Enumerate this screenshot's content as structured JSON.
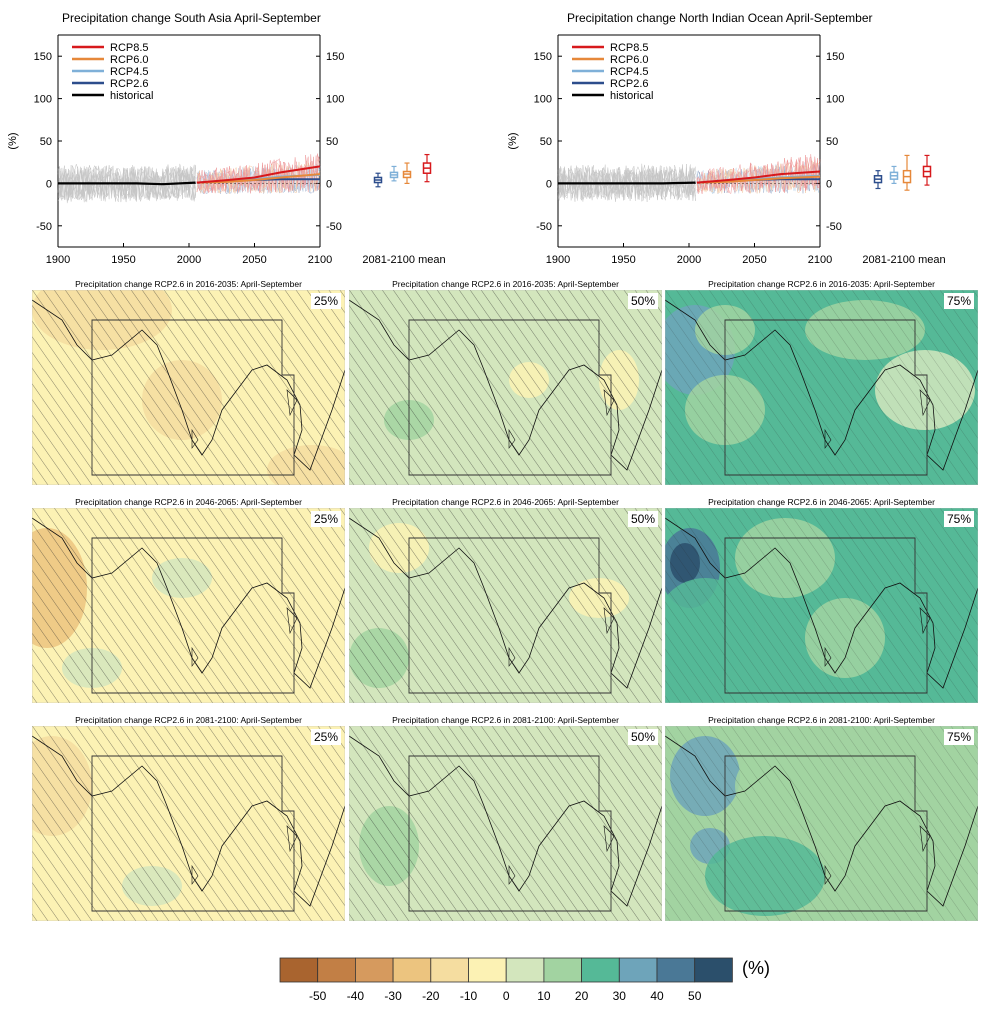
{
  "colors": {
    "rcp85": "#d7191c",
    "rcp60": "#e6883a",
    "rcp45": "#7fb0d8",
    "rcp26": "#2c4d8c",
    "historical": "#000000",
    "historical_spread": "#8c8c8c"
  },
  "chart_data": [
    {
      "type": "line",
      "title": "Precipitation change South Asia April-September",
      "ylabel": "(%)",
      "xlim": [
        1900,
        2100
      ],
      "ylim": [
        -75,
        175
      ],
      "x_ticks": [
        "1900",
        "1950",
        "2000",
        "2050",
        "2100"
      ],
      "y_ticks": [
        "-50",
        "0",
        "50",
        "100",
        "150"
      ],
      "legend": {
        "placement": "top-left",
        "entries": [
          "RCP8.5",
          "RCP6.0",
          "RCP4.5",
          "RCP2.6",
          "historical"
        ]
      },
      "series": [
        {
          "name": "historical",
          "x": [
            1900,
            1920,
            1940,
            1960,
            1980,
            2005
          ],
          "y": [
            0,
            0,
            0,
            0,
            -1,
            1
          ]
        },
        {
          "name": "RCP2.6",
          "x": [
            2006,
            2030,
            2050,
            2070,
            2100
          ],
          "y": [
            1,
            3,
            4,
            5,
            5
          ]
        },
        {
          "name": "RCP4.5",
          "x": [
            2006,
            2030,
            2050,
            2070,
            2100
          ],
          "y": [
            1,
            3,
            5,
            8,
            10
          ]
        },
        {
          "name": "RCP6.0",
          "x": [
            2006,
            2030,
            2050,
            2070,
            2100
          ],
          "y": [
            1,
            2,
            4,
            7,
            11
          ]
        },
        {
          "name": "RCP8.5",
          "x": [
            2006,
            2030,
            2050,
            2070,
            2100
          ],
          "y": [
            1,
            4,
            7,
            13,
            20
          ]
        }
      ],
      "boxes_label": "2081-2100 mean",
      "boxes": [
        {
          "scenario": "RCP2.6",
          "min": -4,
          "p25": 1,
          "median": 4,
          "p75": 7,
          "max": 12
        },
        {
          "scenario": "RCP4.5",
          "min": 3,
          "p25": 7,
          "median": 10,
          "p75": 13,
          "max": 20
        },
        {
          "scenario": "RCP6.0",
          "min": 0,
          "p25": 7,
          "median": 11,
          "p75": 14,
          "max": 24
        },
        {
          "scenario": "RCP8.5",
          "min": 2,
          "p25": 12,
          "median": 18,
          "p75": 24,
          "max": 34
        }
      ]
    },
    {
      "type": "line",
      "title": "Precipitation change North Indian Ocean April-September",
      "ylabel": "(%)",
      "xlim": [
        1900,
        2100
      ],
      "ylim": [
        -75,
        175
      ],
      "x_ticks": [
        "1900",
        "1950",
        "2000",
        "2050",
        "2100"
      ],
      "y_ticks": [
        "-50",
        "0",
        "50",
        "100",
        "150"
      ],
      "legend": {
        "placement": "top-left",
        "entries": [
          "RCP8.5",
          "RCP6.0",
          "RCP4.5",
          "RCP2.6",
          "historical"
        ]
      },
      "series": [
        {
          "name": "historical",
          "x": [
            1900,
            1920,
            1940,
            1960,
            1980,
            2005
          ],
          "y": [
            0,
            0,
            0,
            0,
            0,
            1
          ]
        },
        {
          "name": "RCP2.6",
          "x": [
            2006,
            2030,
            2050,
            2070,
            2100
          ],
          "y": [
            1,
            3,
            4,
            5,
            5
          ]
        },
        {
          "name": "RCP4.5",
          "x": [
            2006,
            2030,
            2050,
            2070,
            2100
          ],
          "y": [
            1,
            3,
            5,
            7,
            9
          ]
        },
        {
          "name": "RCP6.0",
          "x": [
            2006,
            2030,
            2050,
            2070,
            2100
          ],
          "y": [
            1,
            2,
            4,
            6,
            8
          ]
        },
        {
          "name": "RCP8.5",
          "x": [
            2006,
            2030,
            2050,
            2070,
            2100
          ],
          "y": [
            1,
            4,
            7,
            11,
            14
          ]
        }
      ],
      "boxes_label": "2081-2100 mean",
      "boxes": [
        {
          "scenario": "RCP2.6",
          "min": -6,
          "p25": 1,
          "median": 5,
          "p75": 9,
          "max": 15
        },
        {
          "scenario": "RCP4.5",
          "min": 0,
          "p25": 5,
          "median": 9,
          "p75": 13,
          "max": 20
        },
        {
          "scenario": "RCP6.0",
          "min": -8,
          "p25": 1,
          "median": 8,
          "p75": 15,
          "max": 33
        },
        {
          "scenario": "RCP8.5",
          "min": -2,
          "p25": 8,
          "median": 14,
          "p75": 20,
          "max": 33
        }
      ]
    },
    {
      "type": "heatmap",
      "maps": [
        {
          "title": "Precipitation change RCP2.6 in 2016-2035: April-September",
          "percentile": "25%"
        },
        {
          "title": "Precipitation change RCP2.6 in 2016-2035: April-September",
          "percentile": "50%"
        },
        {
          "title": "Precipitation change RCP2.6 in 2016-2035: April-September",
          "percentile": "75%"
        },
        {
          "title": "Precipitation change RCP2.6 in 2046-2065: April-September",
          "percentile": "25%"
        },
        {
          "title": "Precipitation change RCP2.6 in 2046-2065: April-September",
          "percentile": "50%"
        },
        {
          "title": "Precipitation change RCP2.6 in 2046-2065: April-September",
          "percentile": "75%"
        },
        {
          "title": "Precipitation change RCP2.6 in 2081-2100: April-September",
          "percentile": "25%"
        },
        {
          "title": "Precipitation change RCP2.6 in 2081-2100: April-September",
          "percentile": "50%"
        },
        {
          "title": "Precipitation change RCP2.6 in 2081-2100: April-September",
          "percentile": "75%"
        }
      ],
      "colorbar": {
        "ticks": [
          "-50",
          "-40",
          "-30",
          "-20",
          "-10",
          "0",
          "10",
          "20",
          "30",
          "40",
          "50"
        ],
        "units": "(%)",
        "colors": [
          "#a9642f",
          "#c27f45",
          "#d69a5e",
          "#ecc47f",
          "#f5dda0",
          "#fcf2b4",
          "#d3e6bd",
          "#a2d3a1",
          "#55b997",
          "#6ea4ba",
          "#4a7896",
          "#2b4f6b"
        ]
      }
    }
  ]
}
